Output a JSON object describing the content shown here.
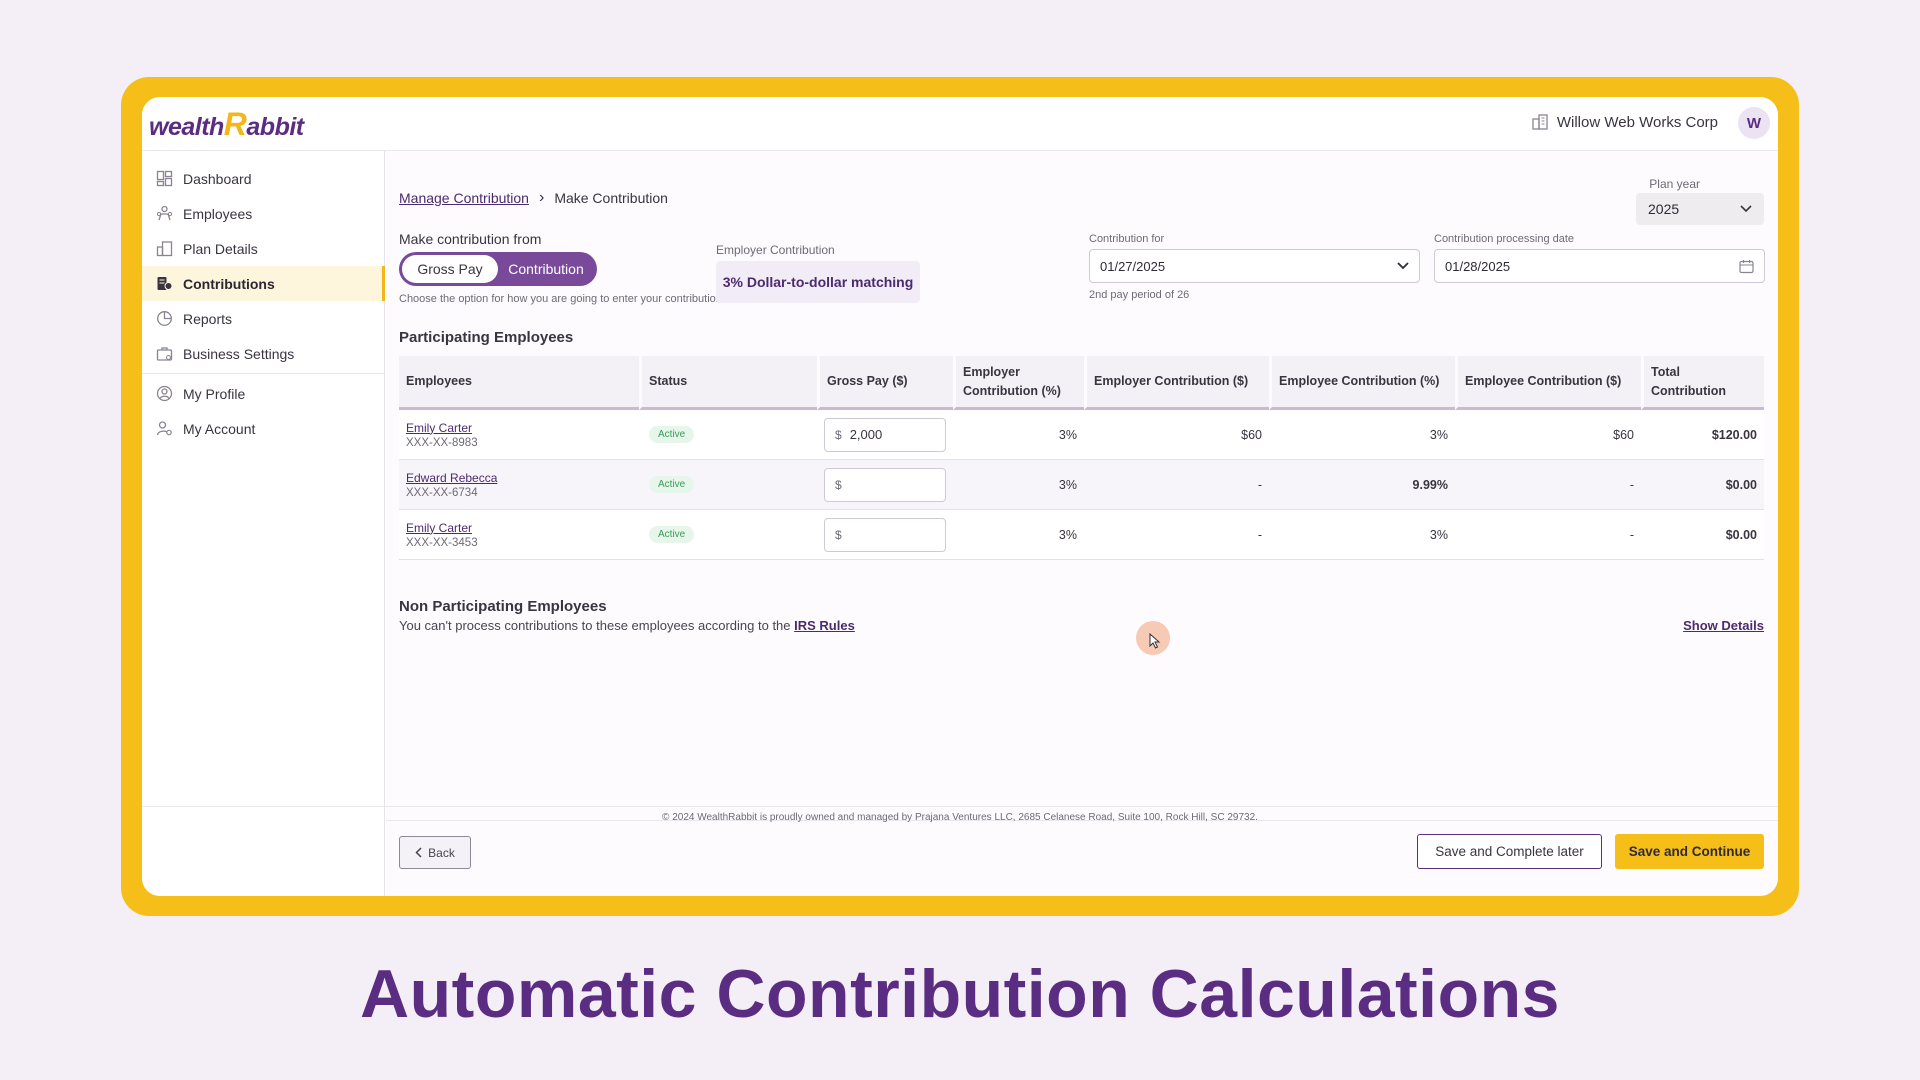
{
  "brand": {
    "logo_part1": "wealth",
    "logo_r": "R",
    "logo_part2": "abbit",
    "company": "Willow Web Works Corp",
    "avatar_initial": "W",
    "accent": "#5b2d82",
    "highlight": "#f6be19"
  },
  "sidebar": {
    "items": [
      {
        "label": "Dashboard",
        "icon": "dashboard-icon"
      },
      {
        "label": "Employees",
        "icon": "employees-icon"
      },
      {
        "label": "Plan Details",
        "icon": "plan-details-icon"
      },
      {
        "label": "Contributions",
        "icon": "contributions-icon",
        "active": true
      },
      {
        "label": "Reports",
        "icon": "reports-icon"
      },
      {
        "label": "Business Settings",
        "icon": "business-settings-icon"
      },
      {
        "label": "My Profile",
        "icon": "profile-icon"
      },
      {
        "label": "My Account",
        "icon": "account-icon"
      }
    ]
  },
  "breadcrumb": {
    "parent": "Manage Contribution",
    "current": "Make Contribution"
  },
  "plan_year": {
    "label": "Plan year",
    "value": "2025"
  },
  "contribution_from": {
    "label": "Make contribution from",
    "options": [
      "Gross Pay",
      "Contribution"
    ],
    "selected": "Gross Pay",
    "hint": "Choose the option for how you are going to enter your contribution."
  },
  "employer_contribution": {
    "label": "Employer Contribution",
    "value": "3% Dollar-to-dollar matching"
  },
  "contribution_for": {
    "label": "Contribution for",
    "value": "01/27/2025",
    "hint": "2nd pay period of 26"
  },
  "processing_date": {
    "label": "Contribution processing date",
    "value": "01/28/2025"
  },
  "participating": {
    "title": "Participating Employees",
    "headers": [
      "Employees",
      "Status",
      "Gross Pay ($)",
      "Employer Contribution (%)",
      "Employer Contribution ($)",
      "Employee Contribution (%)",
      "Employee Contribution ($)",
      "Total Contribution"
    ],
    "rows": [
      {
        "name": "Emily Carter",
        "ssn": "XXX-XX-8983",
        "status": "Active",
        "currency": "$",
        "gross_pay": "2,000",
        "er_pct": "3%",
        "er_amt": "$60",
        "ee_pct": "3%",
        "ee_amt": "$60",
        "total": "$120.00"
      },
      {
        "name": "Edward Rebecca",
        "ssn": "XXX-XX-6734",
        "status": "Active",
        "currency": "$",
        "gross_pay": "",
        "er_pct": "3%",
        "er_amt": "-",
        "ee_pct": "9.99%",
        "ee_amt": "-",
        "total": "$0.00"
      },
      {
        "name": "Emily Carter",
        "ssn": "XXX-XX-3453",
        "status": "Active",
        "currency": "$",
        "gross_pay": "",
        "er_pct": "3%",
        "er_amt": "-",
        "ee_pct": "3%",
        "ee_amt": "-",
        "total": "$0.00"
      }
    ]
  },
  "non_participating": {
    "title": "Non Participating Employees",
    "text": "You can't process contributions to these employees according to the ",
    "link": "IRS Rules",
    "show_details": "Show Details"
  },
  "actions": {
    "back": "Back",
    "save_later": "Save and Complete later",
    "save_continue": "Save and Continue"
  },
  "footer": {
    "copyright": "© 2024 WealthRabbit is proudly owned and managed by Prajana Ventures LLC, 2685 Celanese Road, Suite 100, Rock Hill, SC 29732."
  },
  "headline": "Automatic Contribution Calculations"
}
